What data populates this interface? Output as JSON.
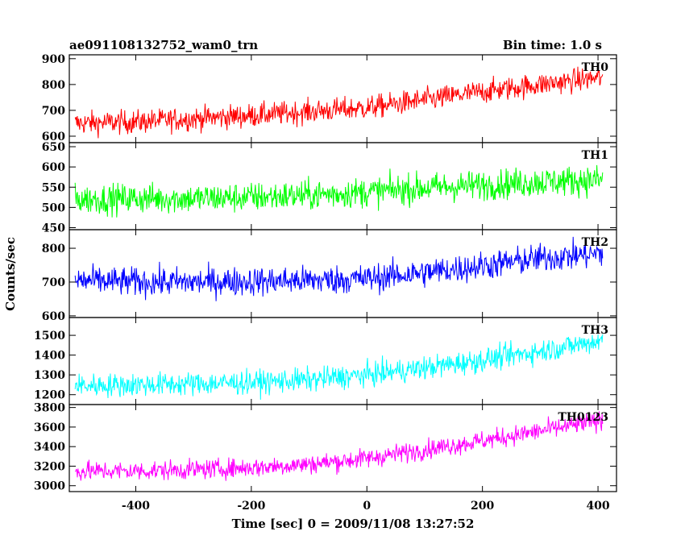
{
  "header": {
    "title": "ae091108132752_wam0_trn",
    "bin_time": "Bin time: 1.0 s"
  },
  "chart_data": {
    "type": "line",
    "title": "ae091108132752_wam0_trn",
    "xlabel": "Time [sec] 0 = 2009/11/08 13:27:52",
    "ylabel": "Counts/sec",
    "xlim": [
      -515,
      432
    ],
    "x_ticks": [
      -400,
      -200,
      0,
      200,
      400
    ],
    "x_range": [
      -505,
      408
    ],
    "grid": false,
    "panels": [
      {
        "name": "TH0",
        "color": "#ff0000",
        "ylim": [
          575,
          915
        ],
        "y_ticks": [
          600,
          700,
          800,
          900
        ],
        "anchors": [
          [
            -505,
            650
          ],
          [
            -400,
            655
          ],
          [
            -300,
            668
          ],
          [
            -200,
            680
          ],
          [
            -100,
            695
          ],
          [
            0,
            710
          ],
          [
            100,
            740
          ],
          [
            200,
            772
          ],
          [
            300,
            800
          ],
          [
            408,
            828
          ]
        ],
        "noise": 32
      },
      {
        "name": "TH1",
        "color": "#00ff00",
        "ylim": [
          445,
          660
        ],
        "y_ticks": [
          450,
          500,
          550,
          600,
          650
        ],
        "anchors": [
          [
            -505,
            520
          ],
          [
            -400,
            522
          ],
          [
            -300,
            522
          ],
          [
            -200,
            525
          ],
          [
            -100,
            530
          ],
          [
            0,
            538
          ],
          [
            100,
            548
          ],
          [
            200,
            555
          ],
          [
            300,
            563
          ],
          [
            408,
            568
          ]
        ],
        "noise": 26
      },
      {
        "name": "TH2",
        "color": "#0000ff",
        "ylim": [
          595,
          855
        ],
        "y_ticks": [
          600,
          700,
          800
        ],
        "anchors": [
          [
            -505,
            705
          ],
          [
            -400,
            700
          ],
          [
            -300,
            700
          ],
          [
            -200,
            702
          ],
          [
            -100,
            705
          ],
          [
            0,
            710
          ],
          [
            100,
            728
          ],
          [
            200,
            748
          ],
          [
            300,
            770
          ],
          [
            408,
            785
          ]
        ],
        "noise": 30
      },
      {
        "name": "TH3",
        "color": "#00ffff",
        "ylim": [
          1150,
          1590
        ],
        "y_ticks": [
          1200,
          1300,
          1400,
          1500
        ],
        "anchors": [
          [
            -505,
            1245
          ],
          [
            -400,
            1250
          ],
          [
            -300,
            1255
          ],
          [
            -200,
            1262
          ],
          [
            -100,
            1275
          ],
          [
            0,
            1300
          ],
          [
            100,
            1335
          ],
          [
            200,
            1375
          ],
          [
            300,
            1420
          ],
          [
            408,
            1475
          ]
        ],
        "noise": 42
      },
      {
        "name": "TH0123",
        "color": "#ff00ff",
        "ylim": [
          2940,
          3830
        ],
        "y_ticks": [
          3000,
          3200,
          3400,
          3600,
          3800
        ],
        "anchors": [
          [
            -505,
            3150
          ],
          [
            -400,
            3150
          ],
          [
            -300,
            3165
          ],
          [
            -200,
            3185
          ],
          [
            -100,
            3220
          ],
          [
            0,
            3280
          ],
          [
            100,
            3370
          ],
          [
            200,
            3460
          ],
          [
            300,
            3560
          ],
          [
            408,
            3670
          ]
        ],
        "noise": 70
      }
    ]
  }
}
